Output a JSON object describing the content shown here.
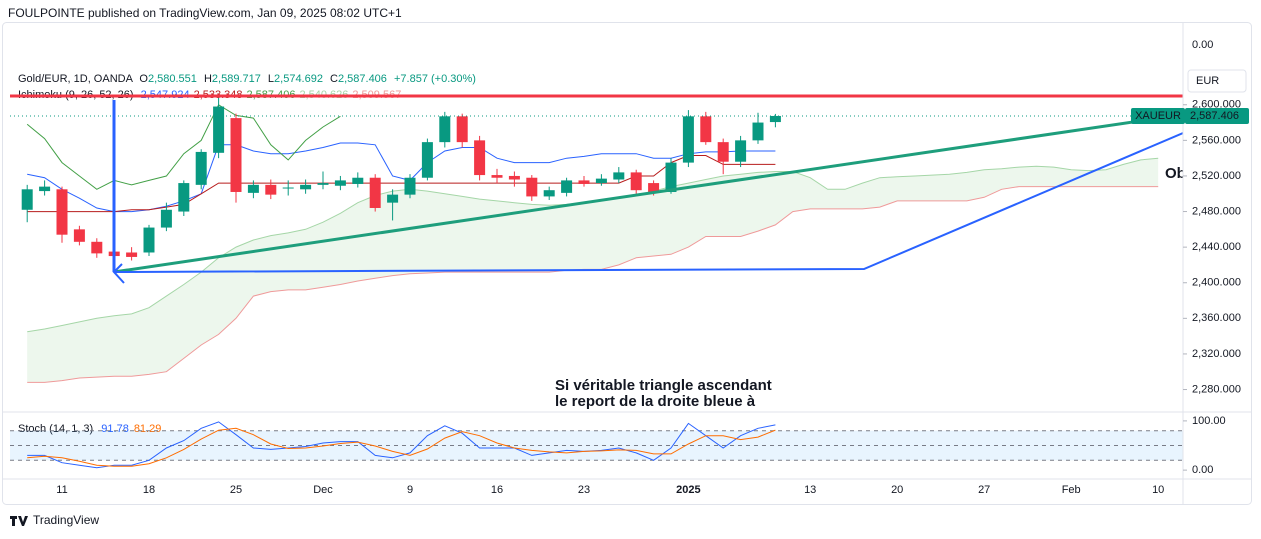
{
  "header": {
    "publisher": "FOULPOINTE published on TradingView.com, Jan 09, 2025 08:02 UTC+1"
  },
  "footer": {
    "brand": "TradingView"
  },
  "chart_data": {
    "type": "candlestick",
    "symbol": "Gold/EUR, 1D, OANDA",
    "ohlc_legend": [
      {
        "key": "O",
        "value": "2,580.551"
      },
      {
        "key": "H",
        "value": "2,589.717"
      },
      {
        "key": "L",
        "value": "2,574.692"
      },
      {
        "key": "C",
        "value": "2,587.406"
      }
    ],
    "change": "+7.857 (+0.30%)",
    "currency": "EUR",
    "top_scale_label": "0.00",
    "price_tag": {
      "symbol": "XAUEUR",
      "price": "2,587.406"
    },
    "categories": [
      null,
      null,
      "11",
      null,
      null,
      null,
      null,
      "18",
      null,
      null,
      null,
      null,
      "25",
      null,
      null,
      null,
      null,
      "Dec",
      null,
      null,
      null,
      null,
      "9",
      null,
      null,
      null,
      null,
      "16",
      null,
      null,
      null,
      null,
      "23",
      null,
      null,
      null,
      null,
      null,
      "2025",
      null,
      null,
      null,
      null,
      null,
      null,
      "13",
      null,
      null,
      null,
      null,
      "20",
      null,
      null,
      null,
      null,
      "27",
      null,
      null,
      null,
      null,
      "Feb",
      null,
      null,
      null,
      null,
      "10"
    ],
    "open": [
      2482,
      2503,
      2505,
      2460,
      2446,
      2435,
      2434,
      2434,
      2462,
      2480,
      2510,
      2546,
      2585,
      2501,
      2510,
      2506,
      2505,
      2510,
      2509,
      2511,
      2518,
      2490,
      2499,
      2518,
      2558,
      2587,
      2560,
      2521,
      2520,
      2518,
      2497,
      2501,
      2515,
      2512,
      2516,
      2524,
      2512,
      2502,
      2535,
      2587,
      2558,
      2536,
      2560,
      2580.551,
      null,
      null,
      null,
      null,
      null,
      null,
      null,
      null,
      null,
      null,
      null,
      null,
      null,
      null,
      null,
      null,
      null,
      null,
      null,
      null,
      null,
      null
    ],
    "high": [
      2510,
      2515,
      2508,
      2464,
      2450,
      2440,
      2440,
      2465,
      2490,
      2515,
      2550,
      2608,
      2590,
      2515,
      2516,
      2515,
      2516,
      2525,
      2520,
      2524,
      2522,
      2505,
      2522,
      2562,
      2592,
      2590,
      2565,
      2528,
      2525,
      2521,
      2508,
      2518,
      2520,
      2522,
      2530,
      2527,
      2515,
      2540,
      2594,
      2592,
      2562,
      2565,
      2591,
      2589.717,
      null,
      null,
      null,
      null,
      null,
      null,
      null,
      null,
      null,
      null,
      null,
      null,
      null,
      null,
      null,
      null,
      null,
      null,
      null,
      null,
      null,
      null
    ],
    "low": [
      2468,
      2498,
      2445,
      2442,
      2428,
      2415,
      2425,
      2430,
      2458,
      2475,
      2505,
      2540,
      2490,
      2495,
      2494,
      2498,
      2500,
      2505,
      2504,
      2507,
      2480,
      2470,
      2495,
      2515,
      2552,
      2552,
      2515,
      2512,
      2508,
      2492,
      2493,
      2497,
      2508,
      2509,
      2512,
      2500,
      2498,
      2500,
      2530,
      2555,
      2522,
      2530,
      2556,
      2574.692,
      null,
      null,
      null,
      null,
      null,
      null,
      null,
      null,
      null,
      null,
      null,
      null,
      null,
      null,
      null,
      null,
      null,
      null,
      null,
      null,
      null,
      null
    ],
    "close": [
      2505,
      2508,
      2454,
      2446,
      2433,
      2430,
      2429,
      2462,
      2482,
      2512,
      2547,
      2598,
      2502,
      2510,
      2499,
      2507,
      2510,
      2512,
      2515,
      2518,
      2484,
      2499,
      2518,
      2558,
      2587,
      2558,
      2521,
      2518,
      2516,
      2497,
      2504,
      2515,
      2511,
      2517,
      2524,
      2504,
      2501,
      2535,
      2587,
      2558,
      2536,
      2560,
      2580,
      2587.406,
      null,
      null,
      null,
      null,
      null,
      null,
      null,
      null,
      null,
      null,
      null,
      null,
      null,
      null,
      null,
      null,
      null,
      null,
      null,
      null,
      null,
      null
    ],
    "up_color": "#089981",
    "down_color": "#f23645",
    "ylim": [
      2257,
      2693
    ],
    "yticks": [
      {
        "value": 2600,
        "label": "2,600.000"
      },
      {
        "value": 2560,
        "label": "2,560.000"
      },
      {
        "value": 2520,
        "label": "2,520.000"
      },
      {
        "value": 2480,
        "label": "2,480.000"
      },
      {
        "value": 2440,
        "label": "2,440.000"
      },
      {
        "value": 2400,
        "label": "2,400.000"
      },
      {
        "value": 2360,
        "label": "2,360.000"
      },
      {
        "value": 2320,
        "label": "2,320.000"
      },
      {
        "value": 2280,
        "label": "2,280.000"
      }
    ],
    "ichimoku": {
      "label": "Ichimoku (9, 26, 52, 26)",
      "cloud_color": "#4caf50",
      "lines": [
        {
          "color": "#2962ff",
          "legend_value": "2,547.924",
          "values": [
            2522,
            2518,
            2505,
            2495,
            2484,
            2480,
            2480,
            2482,
            2486,
            2492,
            2500,
            2555,
            2555,
            2548,
            2545,
            2545,
            2548,
            2552,
            2557,
            2557,
            2555,
            2520,
            2515,
            2535,
            2548,
            2552,
            2552,
            2540,
            2535,
            2535,
            2535,
            2540,
            2542,
            2545,
            2545,
            2545,
            2540,
            2540,
            2545,
            2547,
            2547,
            2548,
            2548,
            2548,
            null,
            null,
            null,
            null,
            null,
            null,
            null,
            null,
            null,
            null,
            null,
            null,
            null,
            null,
            null,
            null,
            null,
            null,
            null,
            null,
            null,
            null
          ]
        },
        {
          "color": "#b71c1c",
          "legend_value": "2,533.348",
          "values": [
            2480,
            2480,
            2480,
            2480,
            2480,
            2480,
            2482,
            2482,
            2485,
            2488,
            2500,
            2512,
            2512,
            2512,
            2512,
            2512,
            2512,
            2512,
            2512,
            2512,
            2512,
            2512,
            2512,
            2512,
            2512,
            2512,
            2512,
            2512,
            2512,
            2512,
            2512,
            2512,
            2512,
            2512,
            2512,
            2520,
            2520,
            2535,
            2543,
            2543,
            2533,
            2533,
            2533,
            2533,
            null,
            null,
            null,
            null,
            null,
            null,
            null,
            null,
            null,
            null,
            null,
            null,
            null,
            null,
            null,
            null,
            null,
            null,
            null,
            null,
            null,
            null
          ]
        },
        {
          "color": "#43a047",
          "legend_value": "2,587.406",
          "values": [
            2578,
            2562,
            2535,
            2520,
            2505,
            2515,
            2510,
            2515,
            2520,
            2545,
            2560,
            2600,
            2588,
            2585,
            2555,
            2538,
            2560,
            2575,
            2587,
            null,
            null,
            null,
            null,
            null,
            null,
            null,
            null,
            null,
            null,
            null,
            null,
            null,
            null,
            null,
            null,
            null,
            null,
            null,
            null,
            null,
            null,
            null,
            null,
            null,
            null,
            null,
            null,
            null,
            null,
            null,
            null,
            null,
            null,
            null,
            null,
            null,
            null,
            null,
            null,
            null,
            null,
            null,
            null,
            null,
            null,
            null
          ]
        },
        {
          "color": "#a5d6a7",
          "legend_value": "2,540.626",
          "values": [
            2345,
            2348,
            2352,
            2356,
            2360,
            2363,
            2365,
            2372,
            2385,
            2398,
            2412,
            2428,
            2440,
            2448,
            2453,
            2456,
            2460,
            2468,
            2478,
            2490,
            2498,
            2503,
            2505,
            2503,
            2500,
            2497,
            2494,
            2492,
            2490,
            2488,
            2487,
            2488,
            2490,
            2492,
            2495,
            2498,
            2503,
            2508,
            2512,
            2516,
            2520,
            2522,
            2524,
            2525,
            2525,
            2518,
            2505,
            2505,
            2512,
            2518,
            2519,
            2520,
            2521,
            2522,
            2524,
            2527,
            2528,
            2530,
            2531,
            2530,
            2527,
            2526,
            2527,
            2533,
            2538,
            2540
          ]
        },
        {
          "color": "#ef9a9a",
          "legend_value": "2,509.567",
          "values": [
            2288,
            2288,
            2290,
            2293,
            2294,
            2295,
            2295,
            2297,
            2300,
            2315,
            2330,
            2342,
            2360,
            2385,
            2390,
            2392,
            2392,
            2395,
            2398,
            2402,
            2405,
            2408,
            2410,
            2411,
            2412,
            2412,
            2412,
            2412,
            2412,
            2412,
            2412,
            2414,
            2415,
            2415,
            2420,
            2428,
            2430,
            2432,
            2440,
            2452,
            2452,
            2452,
            2458,
            2465,
            2480,
            2483,
            2483,
            2483,
            2483,
            2485,
            2492,
            2492,
            2492,
            2492,
            2492,
            2496,
            2505,
            2508,
            2508,
            2508,
            2508,
            2508,
            2508,
            2508,
            2508,
            2508
          ]
        }
      ]
    },
    "stoch": {
      "label": "Stoch (14, 1, 3)",
      "ylim": [
        -16,
        114
      ],
      "yticks": [
        {
          "value": 100,
          "label": "100.00"
        },
        {
          "value": 0,
          "label": "0.00"
        }
      ],
      "levels": [
        80,
        50,
        20
      ],
      "band_color": "#2196f3",
      "lines": [
        {
          "color": "#2962ff",
          "legend_value": "91.78",
          "values": [
            30,
            30,
            15,
            10,
            5,
            10,
            10,
            20,
            45,
            60,
            85,
            98,
            72,
            45,
            42,
            45,
            48,
            55,
            58,
            58,
            30,
            25,
            35,
            70,
            90,
            75,
            45,
            45,
            45,
            30,
            35,
            40,
            38,
            40,
            45,
            35,
            20,
            45,
            95,
            70,
            45,
            70,
            85,
            91.78,
            null,
            null,
            null,
            null,
            null,
            null,
            null,
            null,
            null,
            null,
            null,
            null,
            null,
            null,
            null,
            null,
            null,
            null,
            null,
            null,
            null,
            null
          ]
        },
        {
          "color": "#ff6d00",
          "legend_value": "81.29",
          "values": [
            25,
            28,
            25,
            18,
            10,
            8,
            8,
            13,
            25,
            42,
            63,
            81,
            85,
            72,
            53,
            44,
            45,
            49,
            54,
            57,
            49,
            38,
            30,
            43,
            65,
            78,
            70,
            55,
            45,
            40,
            37,
            35,
            38,
            39,
            41,
            40,
            33,
            33,
            53,
            70,
            70,
            62,
            67,
            81.29,
            null,
            null,
            null,
            null,
            null,
            null,
            null,
            null,
            null,
            null,
            null,
            null,
            null,
            null,
            null,
            null,
            null,
            null,
            null,
            null,
            null,
            null
          ]
        }
      ]
    },
    "annotation": {
      "color": "#2962ff",
      "lines": [
        "Si véritable triangle ascendant",
        "le report de la droite bleue à"
      ],
      "edge_text": "Ob"
    }
  }
}
